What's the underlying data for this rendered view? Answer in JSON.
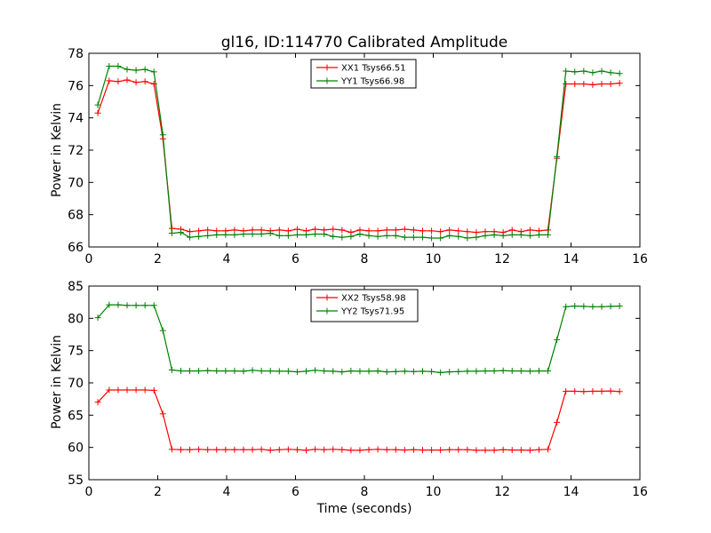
{
  "chart_data": [
    {
      "type": "line",
      "title": "gl16, ID:114770 Calibrated Amplitude",
      "xlabel": "",
      "ylabel": "Power in Kelvin",
      "xlim": [
        0,
        16
      ],
      "ylim": [
        66,
        78
      ],
      "xticks": [
        0,
        2,
        4,
        6,
        8,
        10,
        12,
        14,
        16
      ],
      "yticks": [
        66,
        68,
        70,
        72,
        74,
        76,
        78
      ],
      "grid": false,
      "legend_position": "top-center",
      "x": [
        0.26,
        0.59,
        0.85,
        1.11,
        1.37,
        1.63,
        1.89,
        2.15,
        2.41,
        2.67,
        2.93,
        3.19,
        3.45,
        3.71,
        3.97,
        4.23,
        4.49,
        4.75,
        5.01,
        5.27,
        5.53,
        5.79,
        6.05,
        6.31,
        6.57,
        6.83,
        7.09,
        7.35,
        7.61,
        7.87,
        8.13,
        8.39,
        8.65,
        8.91,
        9.17,
        9.43,
        9.69,
        9.95,
        10.21,
        10.47,
        10.73,
        10.99,
        11.25,
        11.51,
        11.77,
        12.03,
        12.29,
        12.55,
        12.81,
        13.07,
        13.33,
        13.59,
        13.85,
        14.11,
        14.37,
        14.63,
        14.89,
        15.15,
        15.41
      ],
      "series": [
        {
          "name": "XX1 Tsys66.51",
          "color": "#ff0000",
          "values": [
            74.3,
            76.3,
            76.25,
            76.35,
            76.2,
            76.25,
            76.1,
            72.7,
            67.15,
            67.1,
            66.95,
            67.0,
            67.05,
            67.0,
            67.0,
            67.05,
            67.0,
            67.05,
            67.05,
            67.0,
            67.05,
            67.0,
            67.1,
            67.0,
            67.1,
            67.05,
            67.1,
            67.05,
            66.9,
            67.05,
            67.0,
            67.0,
            67.05,
            67.05,
            67.1,
            67.05,
            67.0,
            67.0,
            66.95,
            67.05,
            67.0,
            66.95,
            66.9,
            66.95,
            66.95,
            66.9,
            67.05,
            66.95,
            67.05,
            67.0,
            67.05,
            71.5,
            76.1,
            76.1,
            76.1,
            76.05,
            76.1,
            76.1,
            76.15
          ]
        },
        {
          "name": "YY1 Tsys66.98",
          "color": "#008000",
          "values": [
            74.8,
            77.2,
            77.2,
            77.0,
            76.95,
            77.0,
            76.85,
            72.95,
            66.85,
            66.9,
            66.6,
            66.65,
            66.7,
            66.75,
            66.75,
            66.75,
            66.8,
            66.8,
            66.8,
            66.85,
            66.7,
            66.7,
            66.75,
            66.75,
            66.8,
            66.8,
            66.65,
            66.6,
            66.65,
            66.8,
            66.7,
            66.65,
            66.7,
            66.7,
            66.6,
            66.6,
            66.6,
            66.55,
            66.55,
            66.7,
            66.65,
            66.55,
            66.6,
            66.7,
            66.75,
            66.7,
            66.75,
            66.75,
            66.7,
            66.75,
            66.75,
            71.6,
            76.9,
            76.85,
            76.9,
            76.8,
            76.9,
            76.8,
            76.75
          ]
        }
      ]
    },
    {
      "type": "line",
      "title": "",
      "xlabel": "Time (seconds)",
      "ylabel": "Power in Kelvin",
      "xlim": [
        0,
        16
      ],
      "ylim": [
        55,
        85
      ],
      "xticks": [
        0,
        2,
        4,
        6,
        8,
        10,
        12,
        14,
        16
      ],
      "yticks": [
        55,
        60,
        65,
        70,
        75,
        80,
        85
      ],
      "grid": false,
      "legend_position": "top-center",
      "x": [
        0.26,
        0.59,
        0.85,
        1.11,
        1.37,
        1.63,
        1.89,
        2.15,
        2.41,
        2.67,
        2.93,
        3.19,
        3.45,
        3.71,
        3.97,
        4.23,
        4.49,
        4.75,
        5.01,
        5.27,
        5.53,
        5.79,
        6.05,
        6.31,
        6.57,
        6.83,
        7.09,
        7.35,
        7.61,
        7.87,
        8.13,
        8.39,
        8.65,
        8.91,
        9.17,
        9.43,
        9.69,
        9.95,
        10.21,
        10.47,
        10.73,
        10.99,
        11.25,
        11.51,
        11.77,
        12.03,
        12.29,
        12.55,
        12.81,
        13.07,
        13.33,
        13.59,
        13.85,
        14.11,
        14.37,
        14.63,
        14.89,
        15.15,
        15.41
      ],
      "series": [
        {
          "name": "XX2 Tsys58.98",
          "color": "#ff0000",
          "values": [
            67.0,
            68.9,
            68.9,
            68.9,
            68.9,
            68.9,
            68.85,
            65.2,
            59.7,
            59.65,
            59.65,
            59.7,
            59.65,
            59.65,
            59.65,
            59.65,
            59.65,
            59.65,
            59.7,
            59.55,
            59.65,
            59.7,
            59.65,
            59.55,
            59.7,
            59.65,
            59.7,
            59.65,
            59.55,
            59.55,
            59.65,
            59.7,
            59.65,
            59.65,
            59.6,
            59.65,
            59.6,
            59.6,
            59.6,
            59.65,
            59.65,
            59.65,
            59.55,
            59.55,
            59.55,
            59.65,
            59.6,
            59.6,
            59.55,
            59.65,
            59.7,
            63.9,
            68.7,
            68.7,
            68.65,
            68.7,
            68.7,
            68.75,
            68.65
          ]
        },
        {
          "name": "YY2 Tsys71.95",
          "color": "#008000",
          "values": [
            80.1,
            82.1,
            82.1,
            82.0,
            82.0,
            82.0,
            82.0,
            78.1,
            72.0,
            71.85,
            71.85,
            71.85,
            71.9,
            71.85,
            71.85,
            71.85,
            71.8,
            71.95,
            71.85,
            71.85,
            71.8,
            71.8,
            71.7,
            71.8,
            71.95,
            71.85,
            71.8,
            71.7,
            71.85,
            71.8,
            71.8,
            71.85,
            71.7,
            71.75,
            71.8,
            71.75,
            71.8,
            71.75,
            71.6,
            71.7,
            71.75,
            71.8,
            71.8,
            71.85,
            71.85,
            71.9,
            71.85,
            71.85,
            71.8,
            71.85,
            71.85,
            76.7,
            81.8,
            81.9,
            81.85,
            81.8,
            81.8,
            81.85,
            81.9
          ]
        }
      ]
    }
  ]
}
